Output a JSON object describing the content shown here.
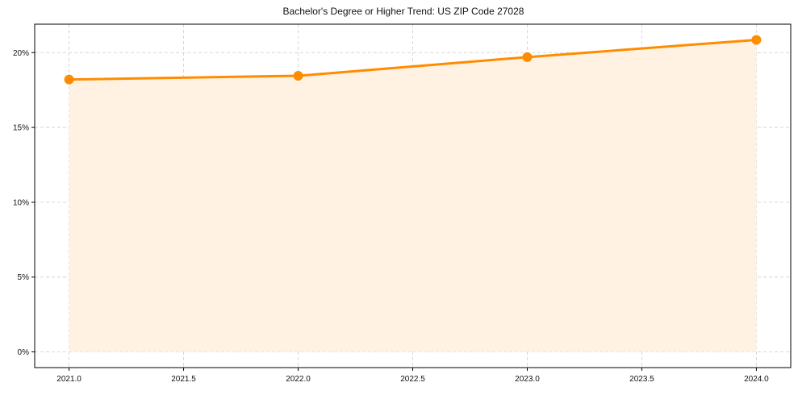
{
  "chart_data": {
    "type": "line",
    "title": "Bachelor's Degree or Higher Trend: US ZIP Code 27028",
    "xlabel": "",
    "ylabel": "",
    "x": [
      2021,
      2022,
      2023,
      2024
    ],
    "series": [
      {
        "name": "Bachelor's Degree or Higher",
        "values": [
          18.2,
          18.45,
          19.7,
          20.85
        ],
        "color": "#ff8c00",
        "fill": "#fff2e3"
      }
    ],
    "x_ticks": [
      "2021.0",
      "2021.5",
      "2022.0",
      "2022.5",
      "2023.0",
      "2023.5",
      "2024.0"
    ],
    "y_ticks": [
      "0%",
      "5%",
      "10%",
      "15%",
      "20%"
    ],
    "xlim": [
      2020.85,
      2024.15
    ],
    "ylim": [
      -1.05,
      21.9
    ],
    "grid": true,
    "legend": "none",
    "area_fill": true
  },
  "colors": {
    "line": "#ff8c00",
    "area": "#fff2e3",
    "grid": "#cccccc",
    "axis": "#000000"
  }
}
